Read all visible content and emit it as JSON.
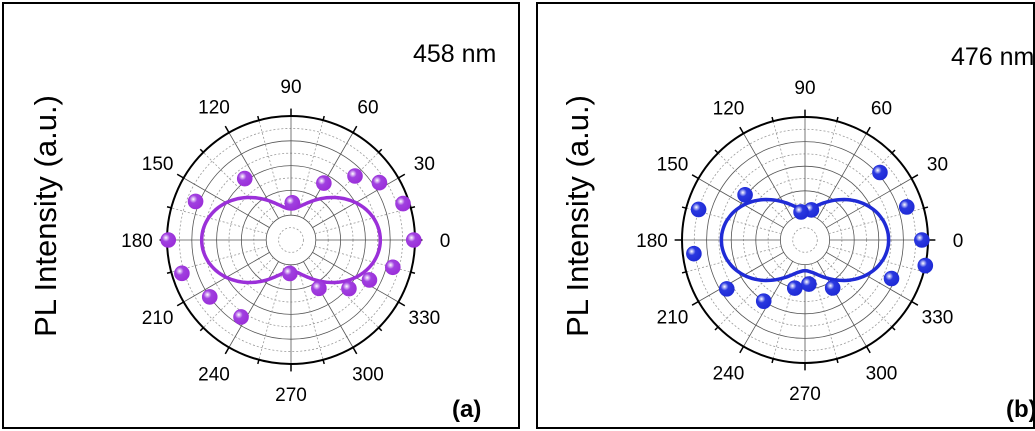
{
  "chart_data": [
    {
      "type": "scatter",
      "panel_label": "(a)",
      "annotation": "458 nm",
      "ylabel": "PL Intensity (a.u.)",
      "angle_labels": [
        "0",
        "30",
        "60",
        "90",
        "120",
        "150",
        "180",
        "210",
        "240",
        "270",
        "300",
        "330"
      ],
      "color": "#9b30d9",
      "marker_color": "#a040e0",
      "radius_range": [
        0,
        1
      ],
      "grid": true,
      "fit": {
        "a": 0.47,
        "b": 0.53,
        "theta0_deg": 0
      },
      "points": [
        {
          "theta": 0,
          "r": 0.99
        },
        {
          "theta": 18,
          "r": 0.95
        },
        {
          "theta": 33,
          "r": 0.85
        },
        {
          "theta": 45,
          "r": 0.73
        },
        {
          "theta": 60,
          "r": 0.53
        },
        {
          "theta": 88,
          "r": 0.3
        },
        {
          "theta": 127,
          "r": 0.62
        },
        {
          "theta": 158,
          "r": 0.83
        },
        {
          "theta": 180,
          "r": 0.99
        },
        {
          "theta": 197,
          "r": 0.92
        },
        {
          "theta": 215,
          "r": 0.8
        },
        {
          "theta": 237,
          "r": 0.74
        },
        {
          "theta": 268,
          "r": 0.27
        },
        {
          "theta": 300,
          "r": 0.45
        },
        {
          "theta": 320,
          "r": 0.61
        },
        {
          "theta": 333,
          "r": 0.71
        },
        {
          "theta": 345,
          "r": 0.85
        }
      ]
    },
    {
      "type": "scatter",
      "panel_label": "(b)",
      "annotation": "476 nm",
      "ylabel": "PL Intensity (a.u.)",
      "angle_labels": [
        "0",
        "30",
        "60",
        "90",
        "120",
        "150",
        "180",
        "210",
        "240",
        "270",
        "300",
        "330"
      ],
      "color": "#1f2bd6",
      "marker_color": "#2a38e0",
      "radius_range": [
        0,
        1
      ],
      "grid": true,
      "fit": {
        "a": 0.43,
        "b": 0.53,
        "theta0_deg": 0
      },
      "points": [
        {
          "theta": 0,
          "r": 0.95
        },
        {
          "theta": 18,
          "r": 0.87
        },
        {
          "theta": 42,
          "r": 0.82
        },
        {
          "theta": 78,
          "r": 0.25
        },
        {
          "theta": 98,
          "r": 0.23
        },
        {
          "theta": 143,
          "r": 0.61
        },
        {
          "theta": 164,
          "r": 0.9
        },
        {
          "theta": 187,
          "r": 0.91
        },
        {
          "theta": 212,
          "r": 0.75
        },
        {
          "theta": 236,
          "r": 0.6
        },
        {
          "theta": 258,
          "r": 0.4
        },
        {
          "theta": 275,
          "r": 0.36
        },
        {
          "theta": 300,
          "r": 0.45
        },
        {
          "theta": 336,
          "r": 0.77
        },
        {
          "theta": 348,
          "r": 1.0
        }
      ]
    }
  ]
}
